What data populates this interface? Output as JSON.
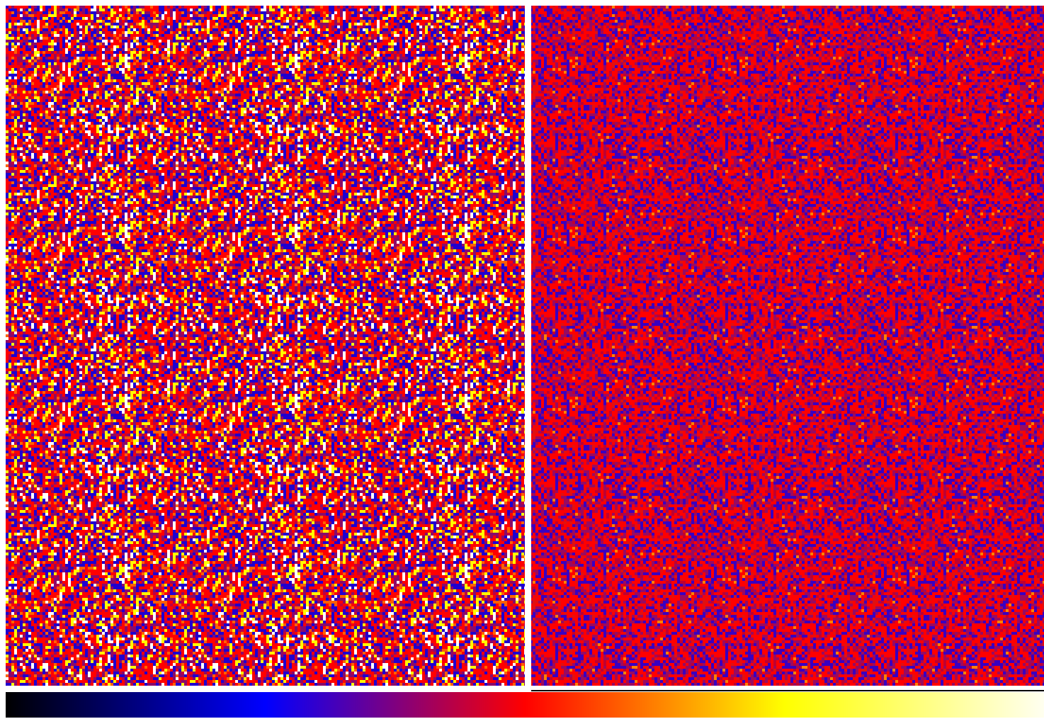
{
  "panels": [
    {
      "colors": [
        "#ff0000",
        "#2000d0",
        "#8a0a6a",
        "#ff6000",
        "#ffff00",
        "#ffffff",
        "#c00040"
      ]
    },
    {
      "colors": [
        "#ff0000",
        "#3a00c0",
        "#9a0a60",
        "#c00030",
        "#e01010",
        "#ff8000"
      ]
    }
  ],
  "colorbar": {
    "colors": [
      "#000000",
      "#0000ff",
      "#ff0000",
      "#ffff00",
      "#fffff0"
    ]
  }
}
